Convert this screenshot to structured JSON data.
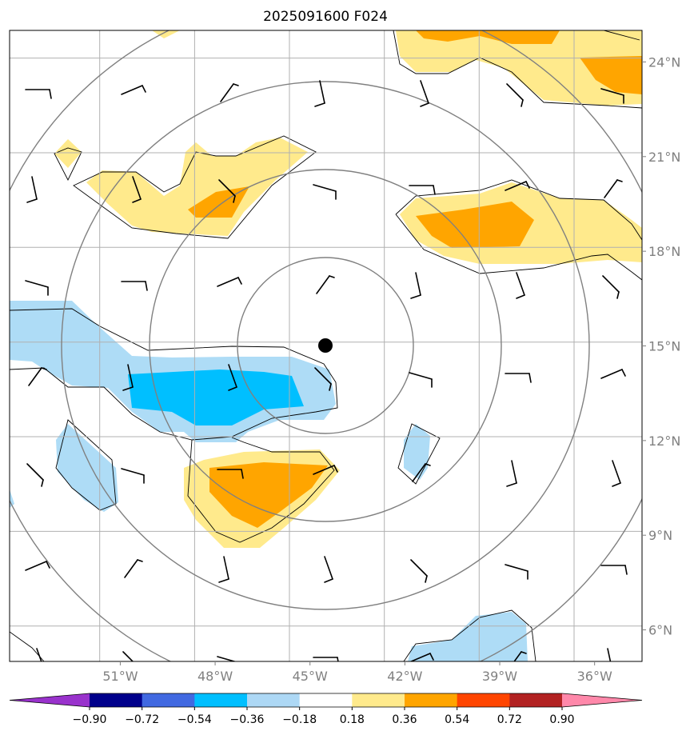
{
  "title": "2025091600 F024",
  "map": {
    "lon_range": [
      -54.5,
      -34.5
    ],
    "lat_range": [
      5.0,
      25.0
    ],
    "lon_ticks": [
      {
        "value": -51,
        "label": "51°W"
      },
      {
        "value": -48,
        "label": "48°W"
      },
      {
        "value": -45,
        "label": "45°W"
      },
      {
        "value": -42,
        "label": "42°W"
      },
      {
        "value": -39,
        "label": "39°W"
      },
      {
        "value": -36,
        "label": "36°W"
      }
    ],
    "lat_ticks": [
      {
        "value": 6,
        "label": "6°N"
      },
      {
        "value": 9,
        "label": "9°N"
      },
      {
        "value": 12,
        "label": "12°N"
      },
      {
        "value": 15,
        "label": "15°N"
      },
      {
        "value": 18,
        "label": "18°N"
      },
      {
        "value": 21,
        "label": "21°N"
      },
      {
        "value": 24,
        "label": "24°N"
      }
    ],
    "storm_center": {
      "lon": -43.9,
      "lat": 14.9
    },
    "range_rings_deg": [
      2.8,
      5.6,
      8.4,
      11.2
    ],
    "colors": {
      "grid": "#b0b0b0",
      "ring": "#808080",
      "contour": "#000000",
      "light_blue": "#aedcf6",
      "blue": "#00bfff",
      "light_yellow": "#ffea8c",
      "orange": "#ffa500"
    }
  },
  "colorbar": {
    "labels": [
      "−0.90",
      "−0.72",
      "−0.54",
      "−0.36",
      "−0.18",
      "0.18",
      "0.36",
      "0.54",
      "0.72",
      "0.90"
    ],
    "colors": [
      "#9932cc",
      "#00008b",
      "#4169e1",
      "#00bfff",
      "#add8f5",
      "#ffffff",
      "#ffea8c",
      "#ffa500",
      "#ff4500",
      "#b22222",
      "#ff88aa"
    ]
  }
}
